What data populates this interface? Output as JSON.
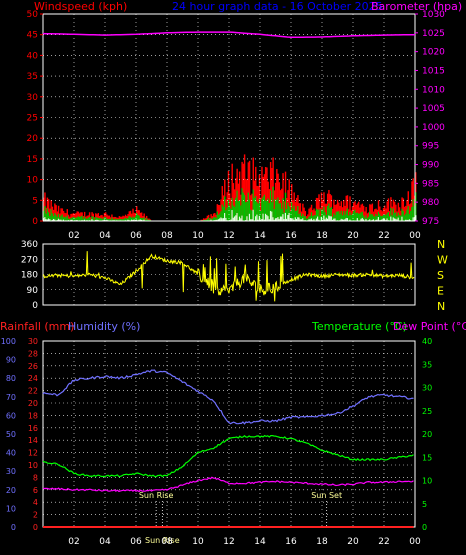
{
  "header": {
    "left_label": "Windspeed (kph)",
    "title": "24 hour graph data - 16 October 2025",
    "right_label": "Barometer (hpa)"
  },
  "colors": {
    "windspeed": "#ff0000",
    "windavg": "#00c000",
    "gust": "#e0ffe0",
    "barometer": "#ff00ff",
    "direction": "#ffff00",
    "humidity": "#7070ff",
    "temperature": "#00ff00",
    "dewpoint": "#ff00ff",
    "rainfall": "#ff2020",
    "grid": "#ffffff",
    "frame": "#ffffff"
  },
  "chart_data": [
    {
      "type": "area",
      "name": "wind-and-pressure",
      "y_left": {
        "label": "Windspeed (kph)",
        "range": [
          0,
          50
        ],
        "ticks": [
          0,
          5,
          10,
          15,
          20,
          25,
          30,
          35,
          40,
          45,
          50
        ]
      },
      "y_right": {
        "label": "Barometer (hpa)",
        "range": [
          975,
          1030
        ],
        "ticks": [
          975,
          980,
          985,
          990,
          995,
          1000,
          1005,
          1010,
          1015,
          1020,
          1025,
          1030
        ]
      },
      "x": {
        "range_hours": [
          0,
          24
        ],
        "tick_labels": [
          "02",
          "04",
          "06",
          "08",
          "10",
          "12",
          "14",
          "16",
          "18",
          "20",
          "22",
          "00"
        ]
      },
      "grid": true,
      "series": [
        {
          "name": "Windspeed",
          "hours": [
            0,
            1,
            2,
            3,
            4,
            5,
            6,
            7,
            8,
            9,
            10,
            11,
            12,
            13,
            14,
            15,
            16,
            17,
            18,
            19,
            20,
            21,
            22,
            23,
            24
          ],
          "values": [
            6,
            3,
            2,
            2,
            2,
            1,
            3,
            0,
            0,
            0,
            0,
            2,
            12,
            14,
            12,
            13,
            8,
            2,
            7,
            6,
            5,
            4,
            5,
            5,
            10
          ]
        },
        {
          "name": "Barometer",
          "hours": [
            0,
            2,
            4,
            6,
            8,
            10,
            12,
            14,
            16,
            18,
            20,
            22,
            24
          ],
          "values": [
            1024.8,
            1024.6,
            1024.4,
            1024.6,
            1025.0,
            1025.2,
            1025.2,
            1024.6,
            1023.8,
            1023.9,
            1024.2,
            1024.4,
            1024.5
          ]
        }
      ]
    },
    {
      "type": "line",
      "name": "wind-direction",
      "y_left": {
        "range": [
          0,
          360
        ],
        "ticks": [
          0,
          90,
          180,
          270,
          360
        ]
      },
      "y_right": {
        "tick_labels": [
          "N",
          "W",
          "S",
          "E",
          "N"
        ]
      },
      "x": {
        "range_hours": [
          0,
          24
        ]
      },
      "grid": true,
      "series": [
        {
          "name": "Direction",
          "hours": [
            0,
            1,
            2,
            3,
            4,
            5,
            6,
            7,
            8,
            9,
            10,
            11,
            12,
            13,
            14,
            15,
            16,
            17,
            18,
            19,
            20,
            21,
            22,
            23,
            24
          ],
          "values": [
            170,
            175,
            170,
            180,
            160,
            120,
            200,
            290,
            260,
            250,
            180,
            100,
            80,
            160,
            90,
            100,
            150,
            180,
            170,
            180,
            175,
            180,
            170,
            175,
            160
          ]
        }
      ]
    },
    {
      "type": "line",
      "name": "temperature-humidity-rain",
      "y_humidity": {
        "label": "Humidity (%)",
        "range": [
          0,
          100
        ],
        "ticks": [
          0,
          10,
          20,
          30,
          40,
          50,
          60,
          70,
          80,
          90,
          100
        ]
      },
      "y_rain": {
        "label": "Rainfall (mm)",
        "range": [
          0,
          30
        ],
        "ticks": [
          0,
          2,
          4,
          6,
          8,
          10,
          12,
          14,
          16,
          18,
          20,
          22,
          24,
          26,
          28,
          30
        ]
      },
      "y_temperature": {
        "label": "Temperature (°C)",
        "range": [
          0,
          40
        ],
        "ticks": [
          0,
          5,
          10,
          15,
          20,
          25,
          30,
          35,
          40
        ]
      },
      "right_label_2": "Dew Point (°C)",
      "x": {
        "range_hours": [
          0,
          24
        ],
        "tick_labels": [
          "02",
          "04",
          "06",
          "08",
          "10",
          "12",
          "14",
          "16",
          "18",
          "20",
          "22",
          "00"
        ]
      },
      "annotations": [
        {
          "label": "Sun Rise",
          "hour": 7.3
        },
        {
          "label": "Sun Set",
          "hour": 18.3
        },
        {
          "label": "Sun Rise",
          "hour": 7.7
        }
      ],
      "grid": true,
      "series": [
        {
          "name": "Humidity",
          "axis": "humidity",
          "hours": [
            0,
            1,
            2,
            3,
            4,
            5,
            6,
            7,
            8,
            9,
            10,
            11,
            12,
            13,
            14,
            15,
            16,
            17,
            18,
            19,
            20,
            21,
            22,
            23,
            24
          ],
          "values": [
            72,
            71,
            79,
            80,
            81,
            80,
            82,
            84,
            83,
            78,
            73,
            68,
            56,
            56,
            57,
            57,
            59,
            59,
            60,
            61,
            65,
            70,
            71,
            70,
            69
          ]
        },
        {
          "name": "Temperature",
          "axis": "temperature",
          "hours": [
            0,
            1,
            2,
            3,
            4,
            5,
            6,
            7,
            8,
            9,
            10,
            11,
            12,
            13,
            14,
            15,
            16,
            17,
            18,
            19,
            20,
            21,
            22,
            23,
            24
          ],
          "values": [
            14,
            13.5,
            11.5,
            11,
            11,
            11,
            11.5,
            11,
            11,
            13,
            16,
            17,
            19,
            19.5,
            19.5,
            19.5,
            19,
            18,
            16.5,
            15.5,
            14.5,
            14.5,
            14.5,
            15,
            15.5
          ]
        },
        {
          "name": "Dew Point",
          "axis": "temperature",
          "hours": [
            0,
            1,
            2,
            3,
            4,
            5,
            6,
            7,
            8,
            9,
            10,
            11,
            12,
            13,
            14,
            15,
            16,
            17,
            18,
            19,
            20,
            21,
            22,
            23,
            24
          ],
          "values": [
            8.2,
            8.2,
            8.0,
            8.0,
            7.8,
            7.8,
            7.8,
            7.8,
            8.0,
            9.0,
            10.0,
            10.6,
            9.4,
            9.4,
            9.6,
            9.8,
            9.6,
            9.4,
            9.2,
            9.0,
            9.2,
            9.6,
            9.6,
            9.8,
            9.8
          ]
        },
        {
          "name": "Rainfall",
          "axis": "rain",
          "hours": [
            0,
            24
          ],
          "values": [
            0,
            0
          ]
        }
      ]
    }
  ],
  "lower_labels": {
    "rain": "Rainfall (mm)",
    "humidity": "Humidity (%)",
    "temperature": "Temperature (°C)",
    "dewpoint": "Dew Point (°C)"
  }
}
